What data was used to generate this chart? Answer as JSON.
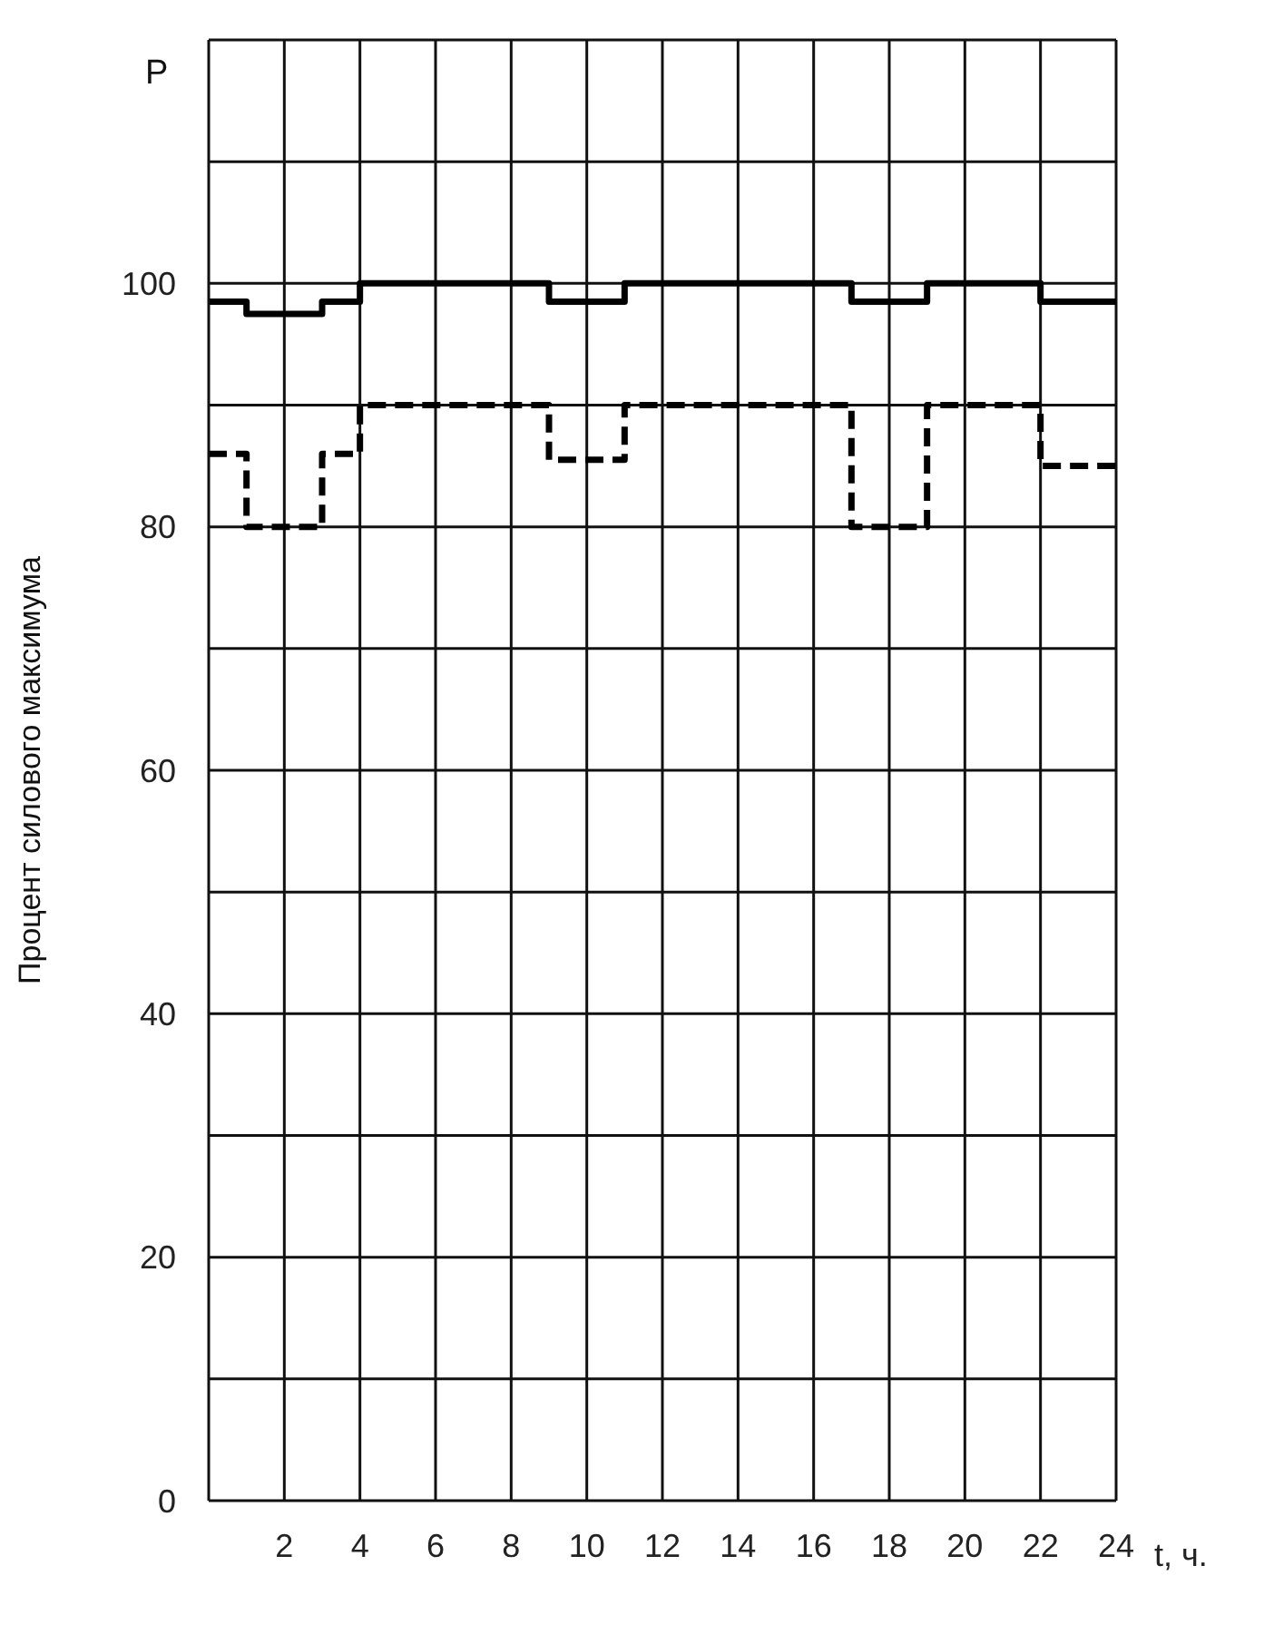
{
  "chart_data": {
    "type": "step",
    "ylabel": "Процент силового максимума",
    "xlabel": "t, ч.",
    "annotations": [
      "P"
    ],
    "x": [
      0,
      1,
      3,
      4,
      9,
      11,
      17,
      19,
      22,
      24
    ],
    "series": [
      {
        "color": "#000000",
        "line_style": "solid",
        "values": [
          98.5,
          97.5,
          98.5,
          100,
          98.5,
          100,
          98.5,
          100,
          98.5,
          98.5
        ]
      },
      {
        "color": "#000000",
        "line_style": "dashed",
        "values": [
          86,
          80,
          86,
          90,
          85.5,
          90,
          80,
          90,
          85,
          85
        ]
      }
    ],
    "xlim": [
      0,
      24
    ],
    "ylim": [
      0,
      120
    ],
    "xticks": [
      2,
      4,
      6,
      8,
      10,
      12,
      14,
      16,
      18,
      20,
      22,
      24
    ],
    "yticks": [
      0,
      {
        "value": 10,
        "label": null
      },
      20,
      {
        "value": 30,
        "label": null
      },
      40,
      {
        "value": 50,
        "label": null
      },
      60,
      {
        "value": 70,
        "label": null
      },
      80,
      {
        "value": 90,
        "label": null
      },
      100,
      {
        "value": 110,
        "label": null
      },
      {
        "value": 120,
        "label": null
      }
    ],
    "grid": true,
    "marker": "none"
  }
}
